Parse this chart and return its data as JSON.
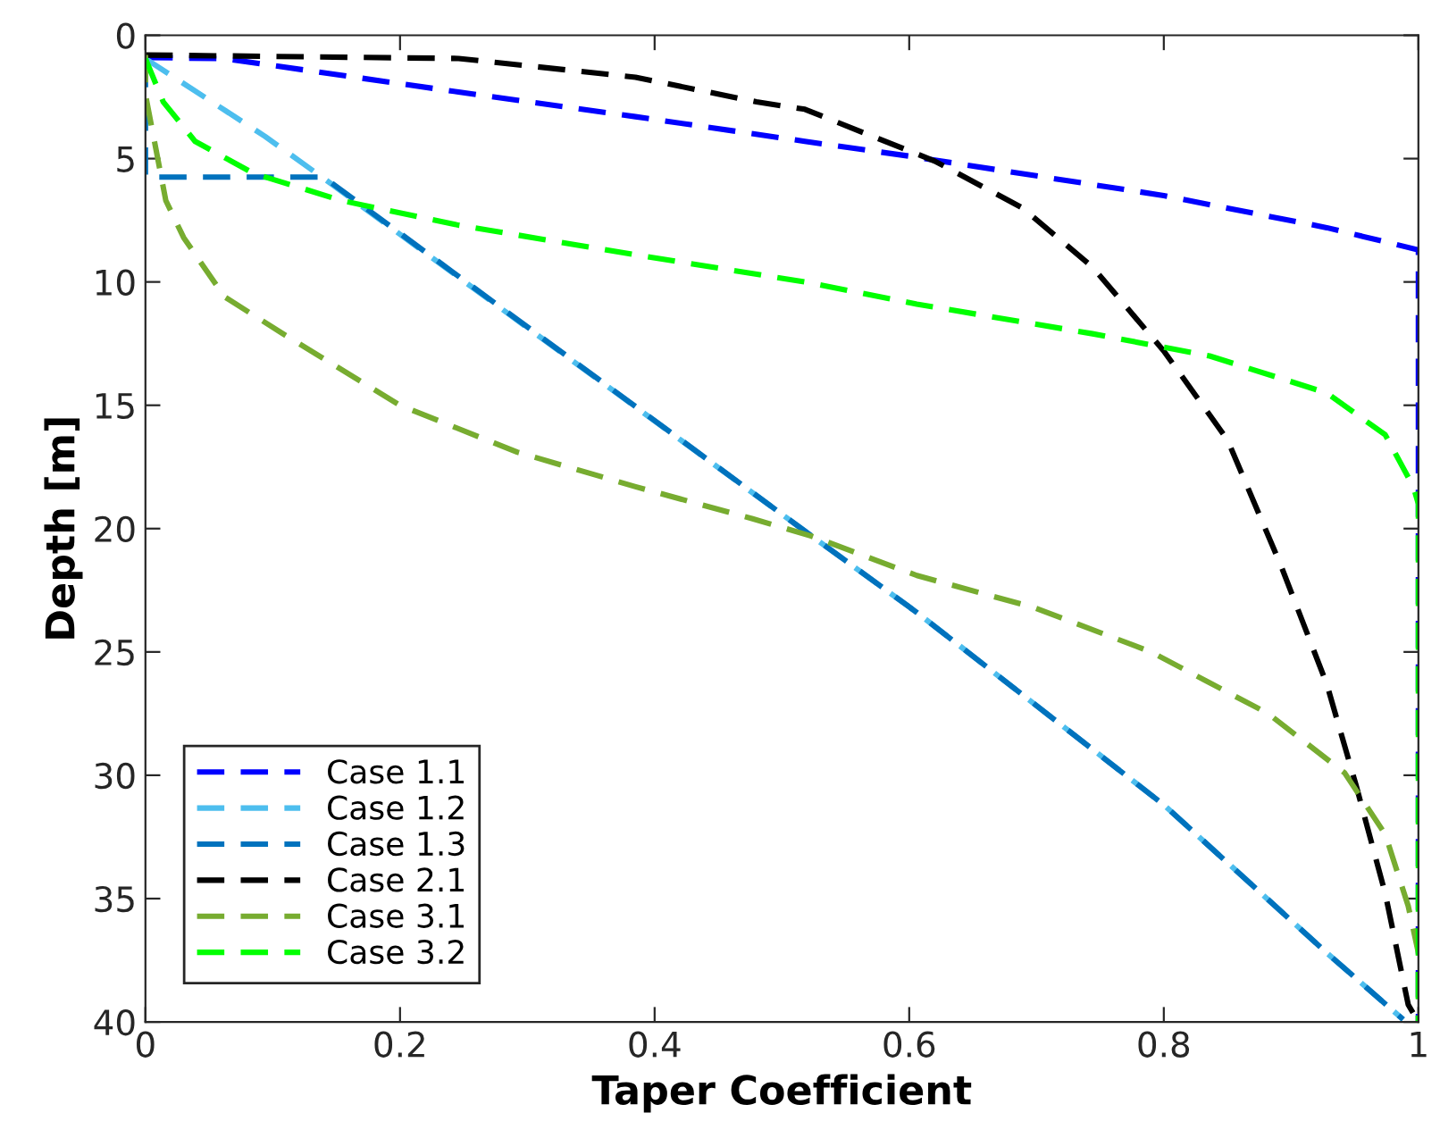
{
  "chart_data": {
    "type": "line",
    "xlabel": "Taper Coefficient",
    "ylabel": "Depth [m]",
    "xlim": [
      0,
      1
    ],
    "ylim": [
      40,
      0
    ],
    "xticks": [
      0,
      0.2,
      0.4,
      0.6,
      0.8,
      1
    ],
    "yticks": [
      0,
      5,
      10,
      15,
      20,
      25,
      30,
      35,
      40
    ],
    "grid": false,
    "legend": "bottom left",
    "line_style": "dashed",
    "marker": "none",
    "series": [
      {
        "name": "Case 1.1",
        "color": "#0000ff",
        "x": [
          0,
          0.063,
          0.246,
          0.385,
          0.518,
          0.6,
          0.8,
          0.928,
          1,
          1
        ],
        "values": [
          0.9,
          0.95,
          2.3,
          3.3,
          4.3,
          4.9,
          6.5,
          7.8,
          8.7,
          40
        ]
      },
      {
        "name": "Case 1.2",
        "color": "#4dbeee",
        "x": [
          0,
          0.094,
          0.14,
          0.518,
          0.606,
          0.8,
          0.928,
          0.988
        ],
        "values": [
          0.95,
          4.1,
          5.8,
          20.1,
          23.4,
          31.2,
          37.2,
          39.9
        ]
      },
      {
        "name": "Case 1.3",
        "color": "#0072bd",
        "x": [
          0,
          0,
          0.14,
          0.518,
          0.606,
          0.8,
          0.928,
          0.988
        ],
        "values": [
          1,
          5.75,
          5.75,
          20.1,
          23.4,
          31.2,
          37.2,
          39.9
        ]
      },
      {
        "name": "Case 2.1",
        "color": "#000000",
        "x": [
          0,
          0.246,
          0.385,
          0.48,
          0.518,
          0.62,
          0.689,
          0.744,
          0.8,
          0.85,
          0.892,
          0.928,
          0.951,
          0.974,
          0.992,
          1
        ],
        "values": [
          0.8,
          0.94,
          1.7,
          2.7,
          3.0,
          5.1,
          7.0,
          9.4,
          12.8,
          16.4,
          21.5,
          26.3,
          30.4,
          34.8,
          39.3,
          40
        ]
      },
      {
        "name": "Case 3.1",
        "color": "#77ac30",
        "x": [
          0,
          0,
          0.016,
          0.03,
          0.062,
          0.108,
          0.2,
          0.292,
          0.385,
          0.477,
          0.523,
          0.606,
          0.698,
          0.79,
          0.882,
          0.942,
          0.974,
          0.992,
          1,
          1
        ],
        "values": [
          0.8,
          2.4,
          6.7,
          8.2,
          10.6,
          12.1,
          15.0,
          16.9,
          18.3,
          19.6,
          20.3,
          21.9,
          23.2,
          25.0,
          27.5,
          29.9,
          32.4,
          35.3,
          37.2,
          40
        ]
      },
      {
        "name": "Case 3.2",
        "color": "#00ff00",
        "x": [
          0,
          0.014,
          0.039,
          0.085,
          0.154,
          0.246,
          0.385,
          0.518,
          0.606,
          0.744,
          0.836,
          0.928,
          0.974,
          0.996,
          1,
          1
        ],
        "values": [
          0.95,
          2.7,
          4.3,
          5.6,
          6.7,
          7.7,
          8.9,
          10.0,
          10.9,
          12.1,
          13.0,
          14.5,
          16.2,
          18.3,
          19,
          40
        ]
      }
    ]
  }
}
